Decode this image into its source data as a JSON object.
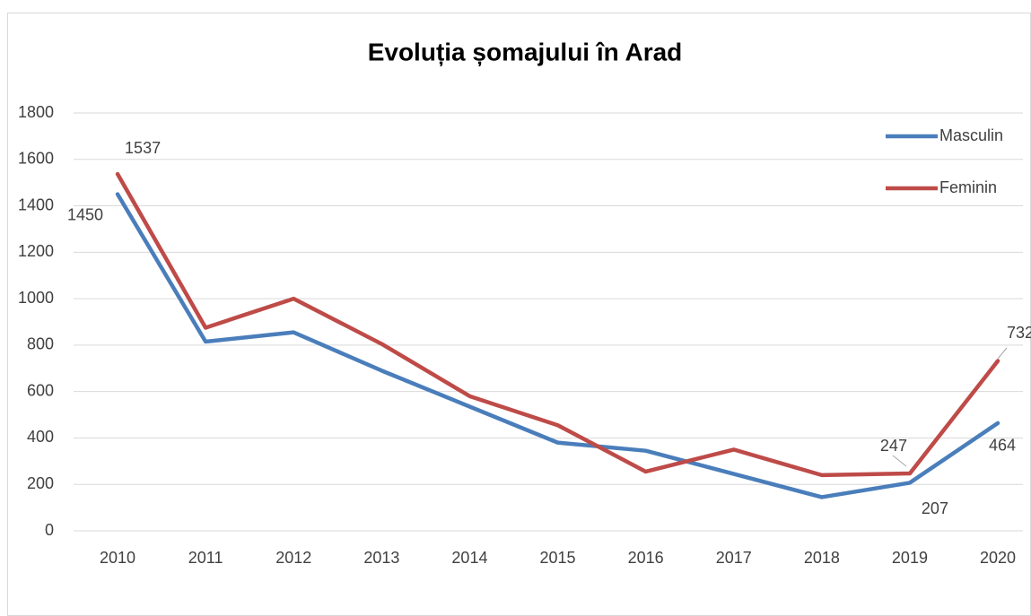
{
  "chart_data": {
    "type": "line",
    "title": "Evoluția șomajului în Arad",
    "categories": [
      "2010",
      "2011",
      "2012",
      "2013",
      "2014",
      "2015",
      "2016",
      "2017",
      "2018",
      "2019",
      "2020"
    ],
    "series": [
      {
        "name": "Masculin",
        "color": "#4a7ebb",
        "values": [
          1450,
          815,
          855,
          690,
          535,
          380,
          345,
          245,
          145,
          207,
          464
        ],
        "value_labels": [
          "1450",
          null,
          null,
          null,
          null,
          null,
          null,
          null,
          null,
          "207",
          "464"
        ]
      },
      {
        "name": "Feminin",
        "color": "#be4b48",
        "values": [
          1537,
          875,
          1000,
          805,
          580,
          455,
          255,
          350,
          240,
          247,
          732
        ],
        "value_labels": [
          "1537",
          null,
          null,
          null,
          null,
          null,
          null,
          null,
          null,
          "247",
          "732"
        ]
      }
    ],
    "ylim": [
      0,
      1800
    ],
    "yticks": [
      0,
      200,
      400,
      600,
      800,
      1000,
      1200,
      1400,
      1600,
      1800
    ],
    "grid": true,
    "legend": "right"
  }
}
